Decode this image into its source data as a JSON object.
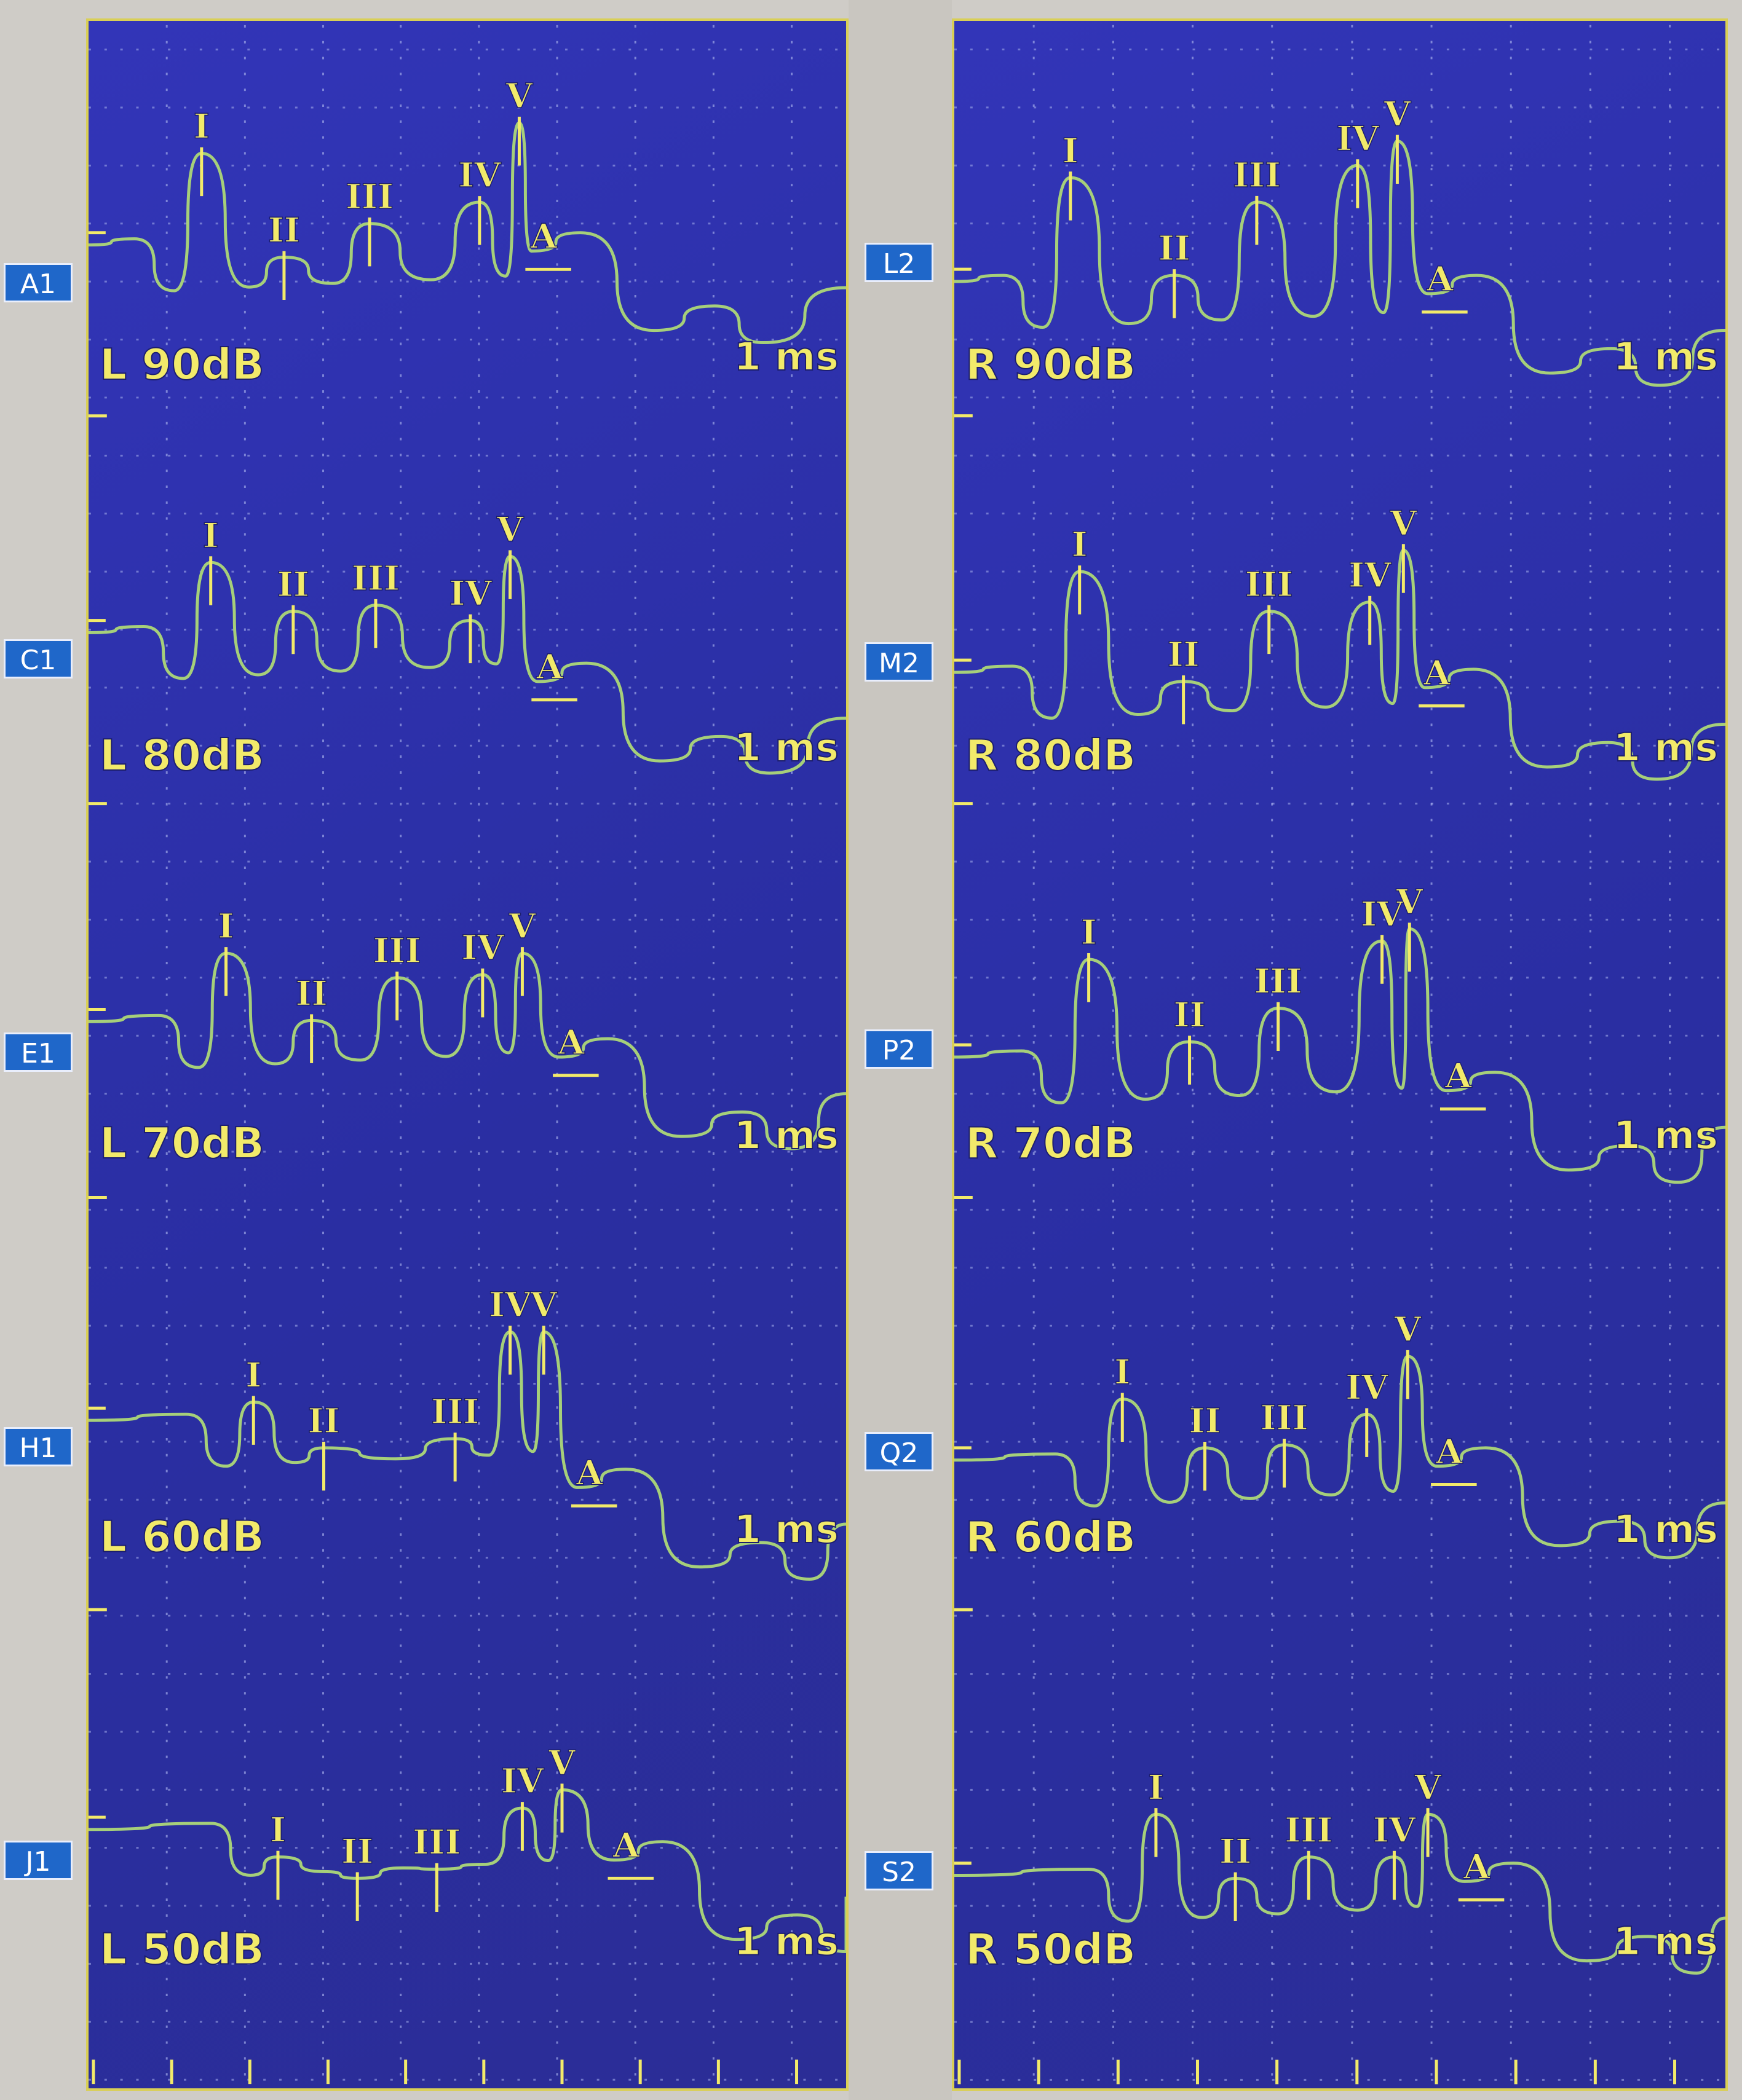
{
  "colors": {
    "background": "#2d30a8",
    "grid": "#9fa8e8",
    "trace": "#a6cf7a",
    "label": "#f2ea6a",
    "channel_badge": "#1f67c9"
  },
  "chart_data": {
    "type": "line",
    "x_unit_label": "1 ms",
    "wave_labels": [
      "I",
      "II",
      "III",
      "IV",
      "V",
      "A"
    ],
    "panels": [
      {
        "side": "left",
        "rows": [
          {
            "channel": "A1",
            "level": "L 90dB"
          },
          {
            "channel": "C1",
            "level": "L 80dB"
          },
          {
            "channel": "E1",
            "level": "L 70dB"
          },
          {
            "channel": "H1",
            "level": "L 60dB"
          },
          {
            "channel": "J1",
            "level": "L 50dB"
          }
        ]
      },
      {
        "side": "right",
        "rows": [
          {
            "channel": "L2",
            "level": "R 90dB"
          },
          {
            "channel": "M2",
            "level": "R 80dB"
          },
          {
            "channel": "P2",
            "level": "R 70dB"
          },
          {
            "channel": "Q2",
            "level": "R 60dB"
          },
          {
            "channel": "S2",
            "level": "R 50dB"
          }
        ]
      }
    ]
  }
}
